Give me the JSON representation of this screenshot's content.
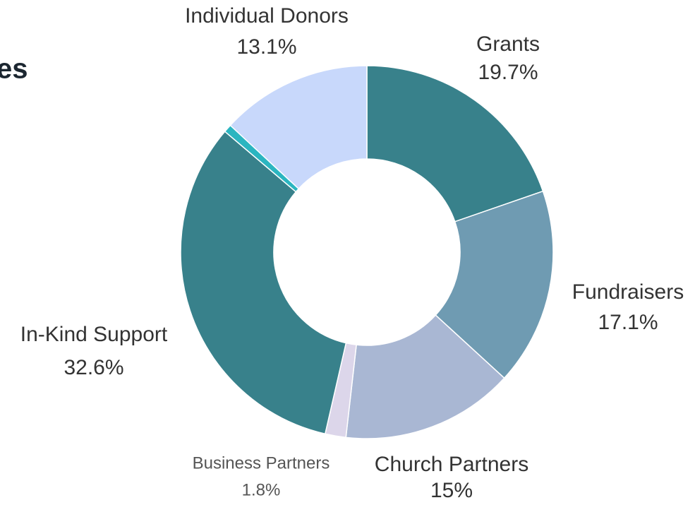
{
  "chart_data": {
    "type": "donut",
    "title": "es",
    "categories": [
      "Grants",
      "Fundraisers",
      "Church Partners",
      "Business Partners",
      "In-Kind Support",
      null,
      "Individual Donors"
    ],
    "values": [
      19.7,
      17.1,
      15,
      1.8,
      32.6,
      0.7,
      13.1
    ],
    "value_labels": [
      "19.7%",
      "17.1%",
      "15%",
      "1.8%",
      "32.6%",
      null,
      "13.1%"
    ],
    "colors": [
      "#38818b",
      "#6f9bb2",
      "#a9b7d3",
      "#dcd6ea",
      "#38818b",
      "#2bb5c0",
      "#c8d8fb"
    ]
  }
}
